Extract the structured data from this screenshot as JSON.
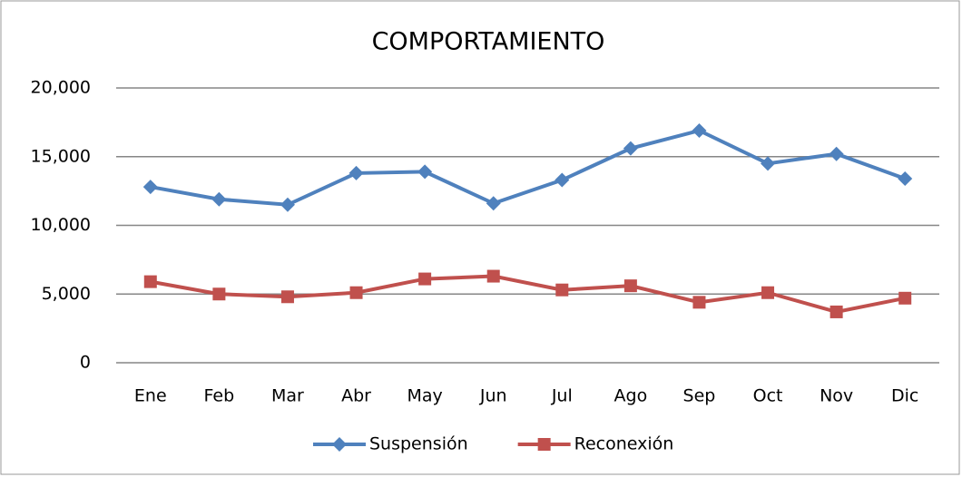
{
  "chart_data": {
    "type": "line",
    "title": "COMPORTAMIENTO",
    "categories": [
      "Ene",
      "Feb",
      "Mar",
      "Abr",
      "May",
      "Jun",
      "Jul",
      "Ago",
      "Sep",
      "Oct",
      "Nov",
      "Dic"
    ],
    "series": [
      {
        "name": "Suspensión",
        "color": "#4f81bd",
        "marker": "diamond",
        "values": [
          12800,
          11900,
          11500,
          13800,
          13900,
          11600,
          13300,
          15600,
          16900,
          14500,
          15200,
          13400
        ]
      },
      {
        "name": "Reconexión",
        "color": "#c0504d",
        "marker": "square",
        "values": [
          5900,
          5000,
          4800,
          5100,
          6100,
          6300,
          5300,
          5600,
          4400,
          5100,
          3700,
          4700
        ]
      }
    ],
    "ylim": [
      0,
      20000
    ],
    "yticks": [
      0,
      {
        "value": 5000,
        "label": "5,000"
      },
      {
        "value": 10000,
        "label": "10,000"
      },
      {
        "value": 15000,
        "label": "15,000"
      },
      {
        "value": 20000,
        "label": "20,000"
      }
    ],
    "grid": true,
    "legend": "bottom"
  }
}
